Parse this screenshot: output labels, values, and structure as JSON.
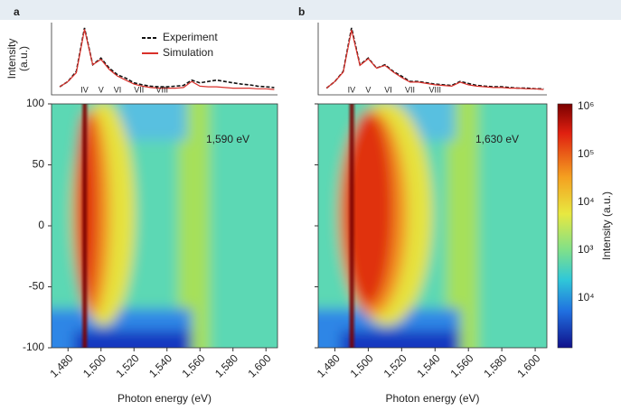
{
  "chart_data": [
    {
      "type": "line",
      "panel": "a",
      "ylabel": "Intensity\n(a.u.)",
      "x": [
        1475,
        1480,
        1485,
        1490,
        1495,
        1500,
        1505,
        1510,
        1515,
        1520,
        1525,
        1530,
        1535,
        1540,
        1545,
        1550,
        1555,
        1560,
        1565,
        1570,
        1575,
        1580,
        1585,
        1590,
        1595,
        1600,
        1605
      ],
      "xlim": [
        1470,
        1607
      ],
      "ylim": [
        0,
        1.08
      ],
      "series": [
        {
          "name": "Experiment",
          "color": "#111111",
          "dash": true,
          "values": [
            0.12,
            0.2,
            0.35,
            1.0,
            0.45,
            0.55,
            0.4,
            0.3,
            0.25,
            0.18,
            0.15,
            0.13,
            0.12,
            0.12,
            0.13,
            0.14,
            0.22,
            0.18,
            0.2,
            0.22,
            0.2,
            0.18,
            0.16,
            0.15,
            0.13,
            0.12,
            0.11
          ]
        },
        {
          "name": "Simulation",
          "color": "#d9302a",
          "dash": false,
          "values": [
            0.12,
            0.2,
            0.33,
            0.98,
            0.45,
            0.53,
            0.38,
            0.28,
            0.22,
            0.16,
            0.13,
            0.11,
            0.1,
            0.1,
            0.1,
            0.11,
            0.2,
            0.13,
            0.12,
            0.12,
            0.11,
            0.1,
            0.1,
            0.1,
            0.09,
            0.09,
            0.08
          ]
        }
      ],
      "annotations": [
        {
          "text": "IV",
          "x": 1490
        },
        {
          "text": "V",
          "x": 1500
        },
        {
          "text": "VI",
          "x": 1510
        },
        {
          "text": "VII",
          "x": 1523
        },
        {
          "text": "VIII",
          "x": 1537
        }
      ],
      "legend": true
    },
    {
      "type": "heatmap",
      "variant": "a",
      "annotation": "1,590 eV",
      "xlabel": "Photon energy (eV)",
      "xlim": [
        1470,
        1607
      ],
      "ylim": [
        -100,
        100
      ],
      "xticks": [
        {
          "value": 1480,
          "label": "1,480"
        },
        {
          "value": 1500,
          "label": "1,500"
        },
        {
          "value": 1520,
          "label": "1,520"
        },
        {
          "value": 1540,
          "label": "1,540"
        },
        {
          "value": 1560,
          "label": "1,560"
        },
        {
          "value": 1580,
          "label": "1,580"
        },
        {
          "value": 1600,
          "label": "1,600"
        }
      ],
      "yticks": [
        100,
        50,
        0,
        -50,
        -100
      ],
      "ytick_labels": true
    },
    {
      "type": "line",
      "panel": "b",
      "x": [
        1475,
        1480,
        1485,
        1490,
        1495,
        1500,
        1505,
        1510,
        1515,
        1520,
        1525,
        1530,
        1535,
        1540,
        1545,
        1550,
        1555,
        1560,
        1565,
        1570,
        1575,
        1580,
        1585,
        1590,
        1595,
        1600,
        1605
      ],
      "xlim": [
        1470,
        1607
      ],
      "ylim": [
        0,
        1.08
      ],
      "series": [
        {
          "name": "Experiment",
          "color": "#111111",
          "dash": true,
          "values": [
            0.1,
            0.2,
            0.35,
            1.0,
            0.45,
            0.55,
            0.4,
            0.45,
            0.35,
            0.28,
            0.2,
            0.2,
            0.18,
            0.16,
            0.15,
            0.14,
            0.2,
            0.17,
            0.14,
            0.13,
            0.12,
            0.12,
            0.11,
            0.1,
            0.1,
            0.09,
            0.09
          ]
        },
        {
          "name": "Simulation",
          "color": "#d9302a",
          "dash": false,
          "values": [
            0.1,
            0.2,
            0.34,
            0.97,
            0.44,
            0.54,
            0.4,
            0.44,
            0.34,
            0.26,
            0.19,
            0.19,
            0.17,
            0.15,
            0.14,
            0.13,
            0.19,
            0.15,
            0.13,
            0.12,
            0.11,
            0.11,
            0.1,
            0.1,
            0.09,
            0.09,
            0.08
          ]
        }
      ],
      "annotations": [
        {
          "text": "IV",
          "x": 1490
        },
        {
          "text": "V",
          "x": 1500
        },
        {
          "text": "VI",
          "x": 1512
        },
        {
          "text": "VII",
          "x": 1525
        },
        {
          "text": "VIII",
          "x": 1540
        }
      ],
      "legend": false
    },
    {
      "type": "heatmap",
      "variant": "b",
      "annotation": "1,630 eV",
      "xlabel": "Photon energy (eV)",
      "xlim": [
        1470,
        1607
      ],
      "ylim": [
        -100,
        100
      ],
      "xticks": [
        {
          "value": 1480,
          "label": "1,480"
        },
        {
          "value": 1500,
          "label": "1,500"
        },
        {
          "value": 1520,
          "label": "1,520"
        },
        {
          "value": 1540,
          "label": "1,540"
        },
        {
          "value": 1560,
          "label": "1,560"
        },
        {
          "value": 1580,
          "label": "1,580"
        },
        {
          "value": 1600,
          "label": "1,600"
        }
      ],
      "yticks": [
        100,
        50,
        0,
        -50,
        -100
      ],
      "ytick_labels": false
    }
  ],
  "colorbar": {
    "label": "Intensity (a.u.)",
    "tick_labels": [
      "10⁶",
      "10⁵",
      "10⁴",
      "10³",
      "10⁴"
    ]
  }
}
